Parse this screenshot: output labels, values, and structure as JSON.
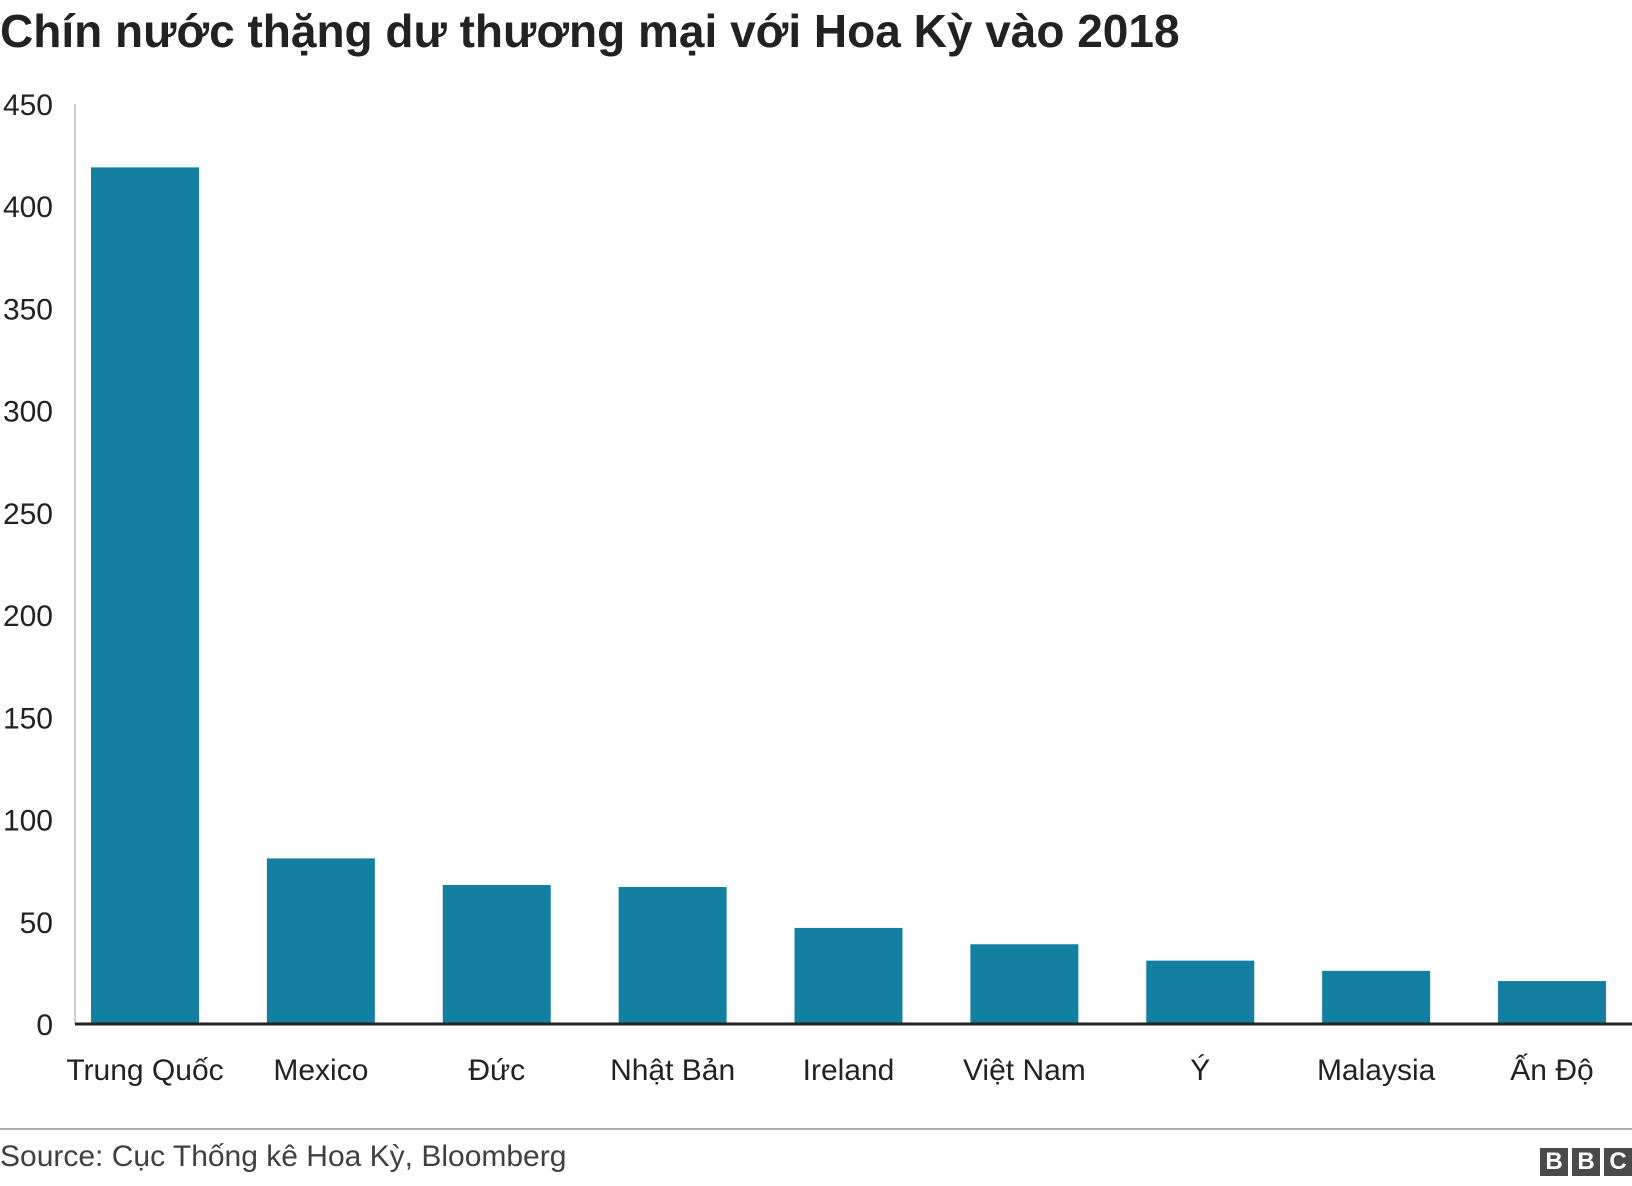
{
  "chart_data": {
    "type": "bar",
    "title": "Chín nước thặng dư thương mại với Hoa Kỳ vào 2018",
    "xlabel": "",
    "ylabel": "",
    "ylim": [
      0,
      450
    ],
    "yticks": [
      0,
      50,
      100,
      150,
      200,
      250,
      300,
      350,
      400,
      450
    ],
    "categories": [
      "Trung Quốc",
      "Mexico",
      "Đức",
      "Nhật Bản",
      "Ireland",
      "Việt Nam",
      "Ý",
      "Malaysia",
      "Ấn Độ"
    ],
    "values": [
      419,
      81,
      68,
      67,
      47,
      39,
      31,
      26,
      21
    ],
    "bar_color": "#1380a1",
    "grid": false,
    "legend": "none"
  },
  "footer": {
    "source": "Source: Cục Thống kê Hoa Kỳ, Bloomberg",
    "logo_letters": [
      "B",
      "B",
      "C"
    ]
  }
}
